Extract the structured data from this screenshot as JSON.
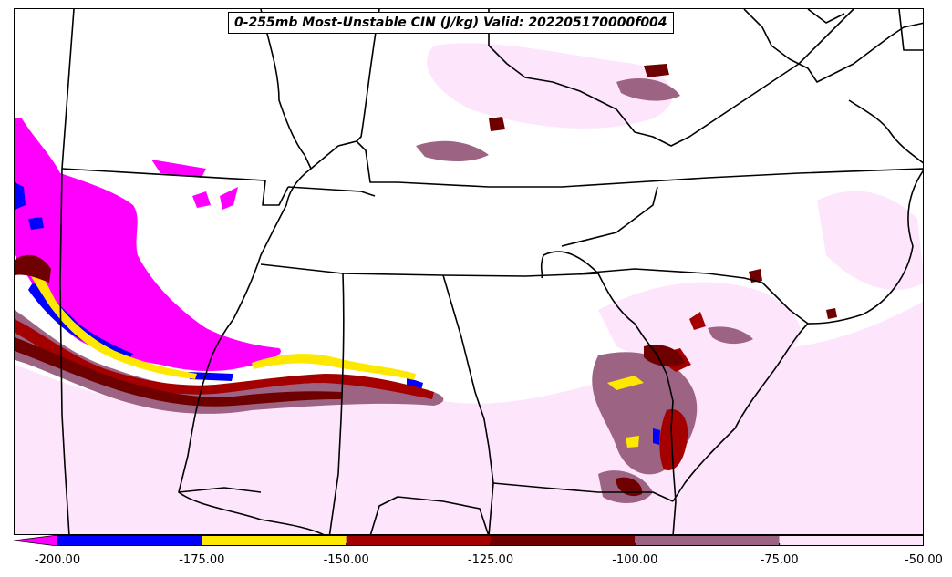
{
  "title": "0-255mb Most-Unstable CIN (J/kg) Valid: 202205170000f004",
  "colorbar": {
    "ticks": [
      "-200.00",
      "-175.00",
      "-150.00",
      "-125.00",
      "-100.00",
      "-75.00",
      "-50.00"
    ],
    "tick_values": [
      -200,
      -175,
      -150,
      -125,
      -100,
      -75,
      -50
    ],
    "bins": [
      {
        "from": -225,
        "to": -200,
        "color": "#ff00ff",
        "extend": true
      },
      {
        "from": -200,
        "to": -175,
        "color": "#0000ff"
      },
      {
        "from": -175,
        "to": -150,
        "color": "#ffe800"
      },
      {
        "from": -150,
        "to": -125,
        "color": "#a50000"
      },
      {
        "from": -125,
        "to": -100,
        "color": "#6e0000"
      },
      {
        "from": -100,
        "to": -75,
        "color": "#9c6482"
      },
      {
        "from": -75,
        "to": -50,
        "color": "#fde6fb"
      }
    ]
  },
  "map": {
    "region": "Southeastern United States",
    "outline_color": "#000000"
  }
}
